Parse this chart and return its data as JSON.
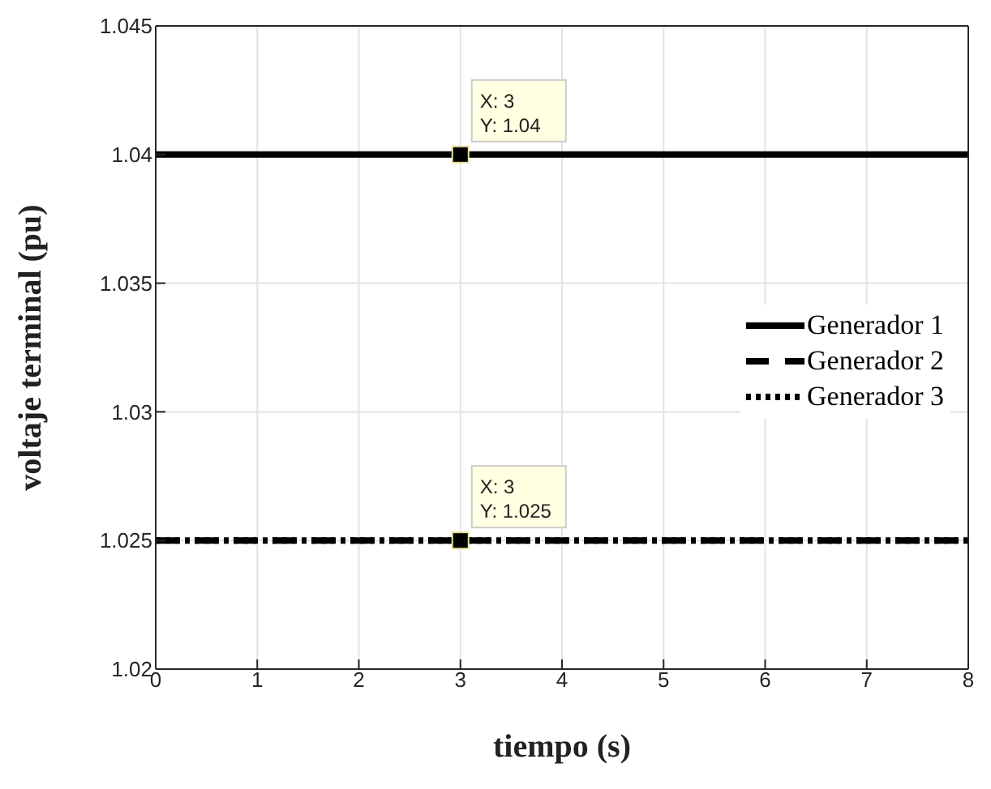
{
  "chart_data": {
    "type": "line",
    "xlabel": "tiempo (s)",
    "ylabel": "voltaje terminal (pu)",
    "x": [
      0,
      8
    ],
    "series": [
      {
        "name": "Generador 1",
        "color": "#000000",
        "values": [
          1.04,
          1.04
        ],
        "line_style": "solid"
      },
      {
        "name": "Generador 2",
        "color": "#000000",
        "values": [
          1.025,
          1.025
        ],
        "line_style": "dashed"
      },
      {
        "name": "Generador 3",
        "color": "#000000",
        "values": [
          1.025,
          1.025
        ],
        "line_style": "dotted"
      }
    ],
    "xlim": [
      0,
      8
    ],
    "xticks": [
      0,
      1,
      2,
      3,
      4,
      5,
      6,
      7,
      8
    ],
    "ylim": [
      1.02,
      1.045
    ],
    "yticks": [
      1.02,
      1.025,
      1.03,
      1.035,
      1.04,
      1.045
    ],
    "grid": true,
    "legend": "right",
    "marker": "none",
    "annotations": [
      {
        "text": "X: 3\nY: 1.04",
        "x": 3,
        "y": 1.04
      },
      {
        "text": "X: 3\nY: 1.025",
        "x": 3,
        "y": 1.025
      }
    ]
  }
}
